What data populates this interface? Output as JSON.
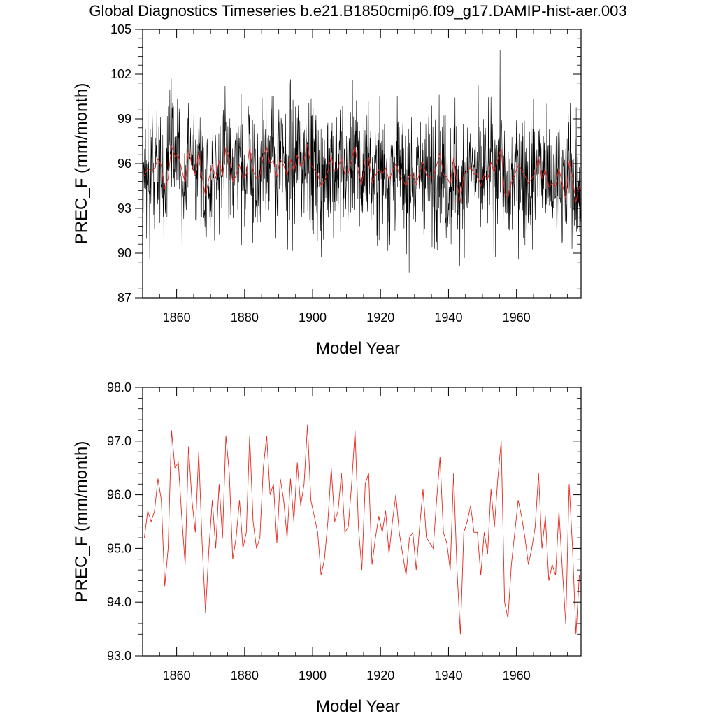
{
  "title": "Global Diagnostics Timeseries b.e21.B1850cmip6.f09_g17.DAMIP-hist-aer.003",
  "colors": {
    "monthly": "#000000",
    "annual": "#e8281e",
    "frame": "#000000"
  },
  "chart_data": [
    {
      "type": "line",
      "xlabel": "Model Year",
      "ylabel": "PREC_F (mm/month)",
      "xlim": [
        1850,
        1979
      ],
      "ylim": [
        87,
        105
      ],
      "xticks": [
        "1860",
        "1880",
        "1900",
        "1920",
        "1940",
        "1960"
      ],
      "xtick_values": [
        1860,
        1880,
        1900,
        1920,
        1940,
        1960
      ],
      "yticks": [
        "87",
        "90",
        "93",
        "96",
        "99",
        "102",
        "105"
      ],
      "ytick_values": [
        87,
        90,
        93,
        96,
        99,
        102,
        105
      ],
      "grid": false,
      "monthly_series": {
        "resolution": "monthly",
        "start": 1850,
        "mean": 95.5,
        "min": 88.7,
        "max": 103.9
      },
      "annual_series": {
        "resolution": "annual",
        "x_start": 1850,
        "values": [
          95.2,
          95.7,
          95.5,
          95.7,
          96.3,
          95.9,
          94.3,
          95.0,
          97.2,
          96.5,
          96.6,
          95.6,
          94.7,
          96.9,
          95.9,
          95.3,
          96.8,
          95.1,
          93.8,
          95.0,
          95.9,
          95.0,
          96.2,
          95.2,
          97.1,
          96.4,
          94.8,
          95.2,
          95.9,
          95.0,
          95.3,
          97.1,
          95.5,
          95.0,
          95.2,
          96.5,
          97.1,
          96.0,
          96.2,
          95.1,
          96.3,
          95.9,
          95.2,
          96.3,
          95.5,
          96.6,
          95.8,
          96.2,
          97.3,
          95.9,
          95.6,
          95.3,
          94.5,
          94.8,
          95.5,
          96.5,
          95.5,
          95.7,
          96.4,
          95.3,
          95.4,
          96.2,
          97.2,
          95.4,
          94.6,
          96.2,
          96.4,
          94.7,
          95.2,
          95.6,
          95.3,
          95.7,
          94.9,
          95.5,
          96.0,
          95.3,
          94.9,
          94.5,
          95.2,
          95.3,
          94.6,
          95.4,
          96.1,
          95.2,
          95.1,
          95.0,
          95.9,
          96.7,
          95.3,
          95.1,
          94.6,
          96.4,
          94.6,
          93.4,
          95.3,
          95.5,
          95.8,
          95.3,
          95.3,
          94.5,
          95.3,
          94.9,
          96.1,
          95.4,
          96.3,
          97.0,
          94.0,
          93.7,
          94.7,
          95.3,
          95.9,
          95.6,
          95.2,
          94.7,
          95.0,
          95.4,
          96.4,
          95.0,
          95.6,
          94.4,
          94.7,
          94.5,
          95.7,
          94.6,
          93.6,
          96.2,
          95.0,
          93.4,
          94.5
        ]
      }
    },
    {
      "type": "line",
      "xlabel": "Model Year",
      "ylabel": "PREC_F (mm/month)",
      "xlim": [
        1850,
        1979
      ],
      "ylim": [
        93.0,
        98.0
      ],
      "xticks": [
        "1860",
        "1880",
        "1900",
        "1920",
        "1940",
        "1960"
      ],
      "xtick_values": [
        1860,
        1880,
        1900,
        1920,
        1940,
        1960
      ],
      "yticks": [
        "93.0",
        "94.0",
        "95.0",
        "96.0",
        "97.0",
        "98.0"
      ],
      "ytick_values": [
        93,
        94,
        95,
        96,
        97,
        98
      ],
      "grid": false,
      "annual_series": {
        "resolution": "annual",
        "x_start": 1850,
        "same_as_top_annual": true
      }
    }
  ]
}
